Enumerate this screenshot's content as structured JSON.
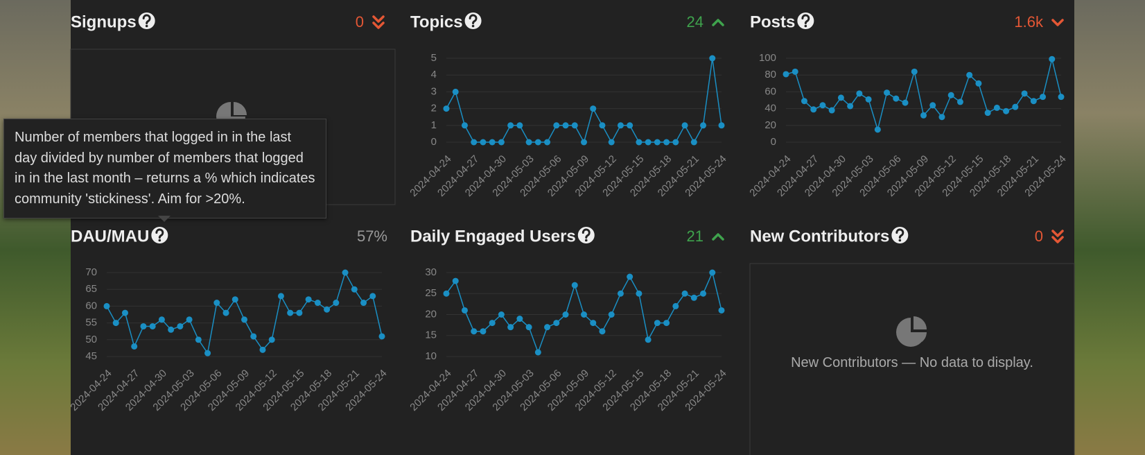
{
  "panels": [
    {
      "title": "Signups",
      "summary": "0"
    },
    {
      "title": "Topics",
      "summary": "24"
    },
    {
      "title": "Posts",
      "summary": "1.6k"
    },
    {
      "title": "DAU/MAU",
      "summary": "57%"
    },
    {
      "title": "Daily Engaged Users",
      "summary": "21"
    },
    {
      "title": "New Contributors",
      "summary": "0",
      "empty": "New Contributors — No data to display."
    }
  ],
  "tooltip": "Number of members that logged in in the last day divided by number of members that logged in in the last month – returns a % which indicates community 'stickiness'. Aim for >20%.",
  "chart_data": [
    {
      "type": "line",
      "color": "#1a8fc4",
      "grid": true,
      "categories": [
        "2024-04-24",
        null,
        null,
        "2024-04-27",
        null,
        null,
        "2024-04-30",
        null,
        null,
        "2024-05-03",
        null,
        null,
        "2024-05-06",
        null,
        null,
        "2024-05-09",
        null,
        null,
        "2024-05-12",
        null,
        null,
        "2024-05-15",
        null,
        null,
        "2024-05-18",
        null,
        null,
        "2024-05-21",
        null,
        null,
        "2024-05-24"
      ],
      "values": [
        2,
        3,
        1,
        0,
        0,
        0,
        0,
        1,
        1,
        0,
        0,
        0,
        1,
        1,
        1,
        0,
        2,
        1,
        0,
        1,
        1,
        0,
        0,
        0,
        0,
        0,
        1,
        0,
        1,
        5,
        1
      ],
      "ylim": [
        0,
        5
      ],
      "yticks": [
        0,
        1,
        2,
        3,
        4,
        5
      ]
    },
    {
      "type": "line",
      "color": "#1a8fc4",
      "grid": true,
      "categories": [
        "2024-04-24",
        null,
        null,
        "2024-04-27",
        null,
        null,
        "2024-04-30",
        null,
        null,
        "2024-05-03",
        null,
        null,
        "2024-05-06",
        null,
        null,
        "2024-05-09",
        null,
        null,
        "2024-05-12",
        null,
        null,
        "2024-05-15",
        null,
        null,
        "2024-05-18",
        null,
        null,
        "2024-05-21",
        null,
        null,
        "2024-05-24"
      ],
      "values": [
        81,
        84,
        49,
        39,
        44,
        38,
        53,
        43,
        58,
        51,
        15,
        59,
        52,
        47,
        84,
        32,
        44,
        30,
        56,
        48,
        80,
        70,
        35,
        41,
        37,
        42,
        58,
        49,
        54,
        99,
        54
      ],
      "ylim": [
        0,
        100
      ],
      "yticks": [
        0,
        20,
        40,
        60,
        80,
        100
      ]
    },
    {
      "type": "line",
      "color": "#1a8fc4",
      "grid": true,
      "categories": [
        "2024-04-24",
        null,
        null,
        "2024-04-27",
        null,
        null,
        "2024-04-30",
        null,
        null,
        "2024-05-03",
        null,
        null,
        "2024-05-06",
        null,
        null,
        "2024-05-09",
        null,
        null,
        "2024-05-12",
        null,
        null,
        "2024-05-15",
        null,
        null,
        "2024-05-18",
        null,
        null,
        "2024-05-21",
        null,
        null,
        "2024-05-24"
      ],
      "values": [
        60,
        55,
        58,
        48,
        54,
        54,
        56,
        53,
        54,
        56,
        50,
        46,
        61,
        58,
        62,
        56,
        51,
        47,
        50,
        63,
        58,
        58,
        62,
        61,
        59,
        61,
        70,
        65,
        61,
        63,
        51
      ],
      "ylim": [
        45,
        70
      ],
      "yticks": [
        45,
        50,
        55,
        60,
        65,
        70
      ]
    },
    {
      "type": "line",
      "color": "#1a8fc4",
      "grid": true,
      "categories": [
        "2024-04-24",
        null,
        null,
        "2024-04-27",
        null,
        null,
        "2024-04-30",
        null,
        null,
        "2024-05-03",
        null,
        null,
        "2024-05-06",
        null,
        null,
        "2024-05-09",
        null,
        null,
        "2024-05-12",
        null,
        null,
        "2024-05-15",
        null,
        null,
        "2024-05-18",
        null,
        null,
        "2024-05-21",
        null,
        null,
        "2024-05-24"
      ],
      "values": [
        25,
        28,
        21,
        16,
        16,
        18,
        20,
        17,
        19,
        17,
        11,
        17,
        18,
        20,
        27,
        20,
        18,
        16,
        20,
        25,
        29,
        25,
        14,
        18,
        18,
        22,
        25,
        24,
        25,
        30,
        21
      ],
      "ylim": [
        10,
        30
      ],
      "yticks": [
        10,
        15,
        20,
        25,
        30
      ]
    }
  ]
}
